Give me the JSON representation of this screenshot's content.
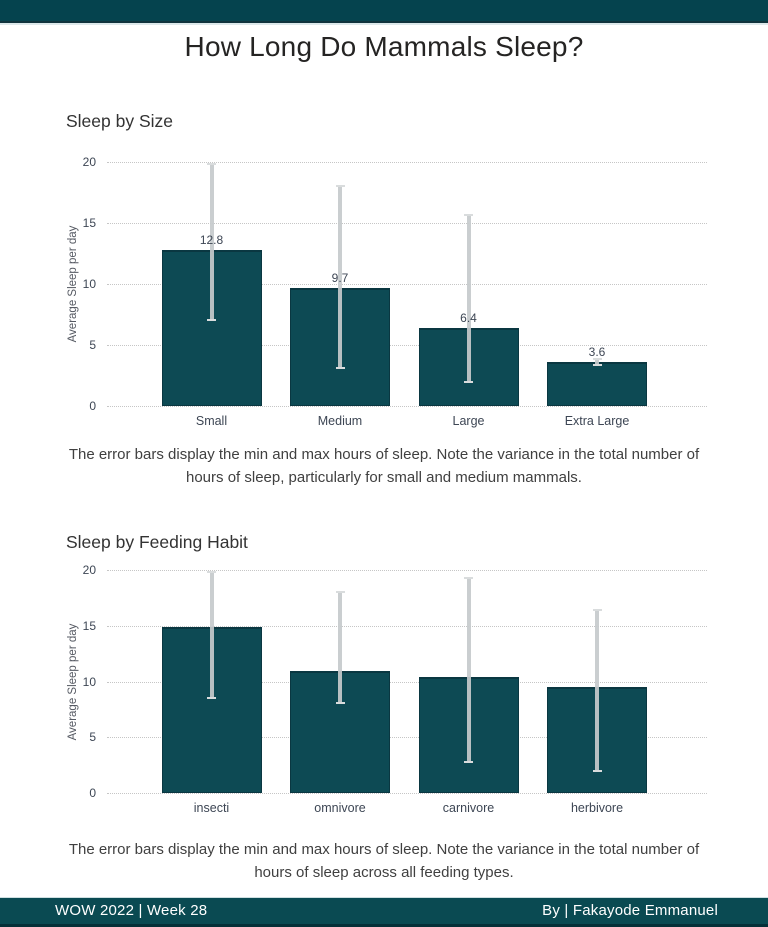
{
  "page": {
    "main_title": "How Long Do Mammals Sleep?",
    "footer": {
      "left": "WOW 2022 | Week 28",
      "right": "By | Fakayode Emmanuel"
    }
  },
  "colors": {
    "header_teal": "#05434e",
    "footer_teal": "#0a4a52",
    "bar_fill": "#0d4a54",
    "gridline": "#c6c6c6",
    "error_bar": "#c6cacc",
    "axis_text": "#3d4654",
    "title_text": "#252423"
  },
  "chart_data": [
    {
      "type": "bar",
      "title": "Sleep by Size",
      "ylabel": "Average Sleep per day",
      "xlabel": "",
      "ylim": [
        0,
        20
      ],
      "yticks": [
        0,
        5,
        10,
        15,
        20
      ],
      "grid": "horizontal-dotted",
      "legend": "none",
      "categories": [
        "Small",
        "Medium",
        "Large",
        "Extra Large"
      ],
      "values": [
        12.8,
        9.7,
        6.4,
        3.6
      ],
      "show_data_labels": true,
      "data_labels": [
        "12.8",
        "9.7",
        "6.4",
        "3.6"
      ],
      "error_min": [
        7.0,
        3.0,
        1.9,
        3.3
      ],
      "error_max": [
        19.9,
        18.1,
        15.7,
        3.9
      ],
      "caption": "The error bars display the min and max hours of sleep. Note the variance in the total number of hours of sleep, particularly for small and medium mammals."
    },
    {
      "type": "bar",
      "title": "Sleep by Feeding Habit",
      "ylabel": "Average Sleep per day",
      "xlabel": "",
      "ylim": [
        0,
        20
      ],
      "yticks": [
        0,
        5,
        10,
        15,
        20
      ],
      "grid": "horizontal-dotted",
      "legend": "none",
      "categories": [
        "insecti",
        "omnivore",
        "carnivore",
        "herbivore"
      ],
      "values": [
        14.9,
        10.9,
        10.4,
        9.5
      ],
      "show_data_labels": false,
      "data_labels": [],
      "error_min": [
        8.4,
        8.0,
        2.7,
        1.9
      ],
      "error_max": [
        19.9,
        18.1,
        19.4,
        16.5
      ],
      "caption": "The error bars display the min and max hours of sleep. Note the variance in the total number of hours of sleep across all feeding types."
    }
  ]
}
